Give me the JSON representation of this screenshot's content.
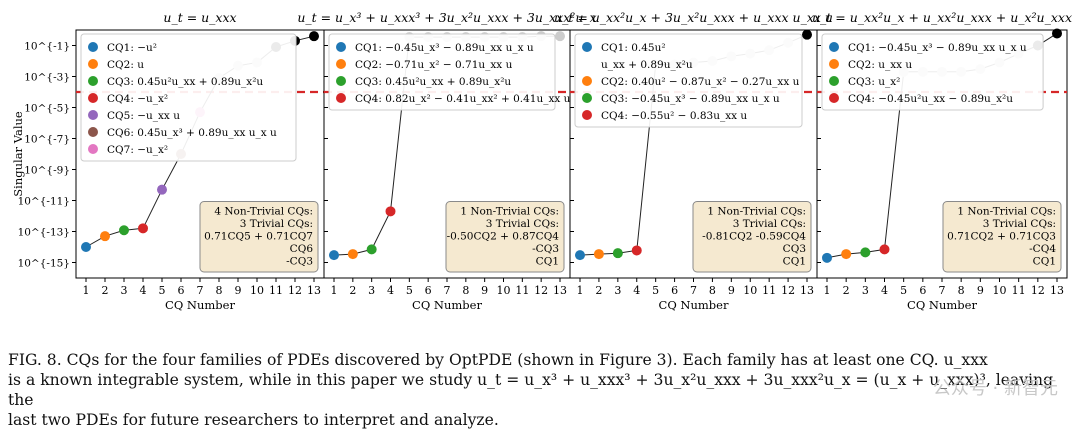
{
  "figure": {
    "caption": [
      "FIG. 8. CQs for the four families of PDEs discovered by OptPDE (shown in Figure 3). Each family has at least one CQ. u_xxx",
      "is a known integrable system, while in this paper we study u_t = u_x³ + u_xxx³ + 3u_x²u_xxx + 3u_xxx²u_x = (u_x + u_xxx)³, leaving the",
      "last two PDEs for future researchers to interpret and analyze."
    ],
    "watermark": "公众号 · 新智元"
  },
  "chart_data": [
    {
      "type": "scatter",
      "title": "u_t = u_xxx",
      "xlabel": "CQ Number",
      "ylabel": "Singular Value",
      "x": [
        1,
        2,
        3,
        4,
        5,
        6,
        7,
        8,
        9,
        10,
        11,
        12,
        13
      ],
      "y": [
        1e-14,
        5e-14,
        1.2e-13,
        1.6e-13,
        5e-11,
        1e-08,
        5e-06,
        0.0008,
        0.005,
        0.008,
        0.08,
        0.2,
        0.4
      ],
      "point_colors": [
        "#1f77b4",
        "#ff7f0e",
        "#2ca02c",
        "#d62728",
        "#9467bd",
        "#8c564b",
        "#e377c2",
        "#cccccc",
        "#cccccc",
        "#cccccc",
        "#000000",
        "#000000",
        "#000000"
      ],
      "threshold": 0.0001,
      "ylim_log10": [
        -16,
        0
      ],
      "yticks": [
        "10^{-1}",
        "10^{-3}",
        "10^{-5}",
        "10^{-7}",
        "10^{-9}",
        "10^{-11}",
        "10^{-13}",
        "10^{-15}"
      ],
      "xticks": [
        "1",
        "2",
        "3",
        "4",
        "5",
        "6",
        "7",
        "8",
        "9",
        "10",
        "11",
        "12",
        "13"
      ],
      "legend": [
        {
          "label": "CQ1: −u²",
          "color": "#1f77b4"
        },
        {
          "label": "CQ2: u",
          "color": "#ff7f0e"
        },
        {
          "label": "CQ3: 0.45u²u_xx + 0.89u_x²u",
          "color": "#2ca02c"
        },
        {
          "label": "CQ4: −u_x²",
          "color": "#d62728"
        },
        {
          "label": "CQ5: −u_xx u",
          "color": "#9467bd"
        },
        {
          "label": "CQ6: 0.45u_x³ + 0.89u_xx u_x u",
          "color": "#8c564b"
        },
        {
          "label": "CQ7: −u_x²",
          "color": "#e377c2"
        }
      ],
      "summary": [
        "4 Non-Trivial CQs:",
        "3 Trivial CQs:",
        "0.71CQ5 + 0.71CQ7",
        "CQ6",
        "-CQ3"
      ]
    },
    {
      "type": "scatter",
      "title": "u_t = u_x³ + u_xxx³ + 3u_x²u_xxx + 3u_xxx²u_x",
      "xlabel": "CQ Number",
      "ylabel": "",
      "x": [
        1,
        2,
        3,
        4,
        5,
        6,
        7,
        8,
        9,
        10,
        11,
        12,
        13
      ],
      "y": [
        3e-15,
        3.5e-15,
        7e-15,
        2e-12,
        0.35,
        0.35,
        0.35,
        0.35,
        0.35,
        0.35,
        0.35,
        0.4,
        0.4
      ],
      "point_colors": [
        "#1f77b4",
        "#ff7f0e",
        "#2ca02c",
        "#d62728",
        "#cccccc",
        "#cccccc",
        "#cccccc",
        "#cccccc",
        "#cccccc",
        "#cccccc",
        "#cccccc",
        "#cccccc",
        "#cccccc"
      ],
      "threshold": 0.0001,
      "ylim_log10": [
        -16,
        0
      ],
      "xticks": [
        "1",
        "2",
        "3",
        "4",
        "5",
        "6",
        "7",
        "8",
        "9",
        "10",
        "11",
        "12",
        "13"
      ],
      "legend": [
        {
          "label": "CQ1: −0.45u_x³ − 0.89u_xx u_x u",
          "color": "#1f77b4"
        },
        {
          "label": "CQ2: −0.71u_x² − 0.71u_xx u",
          "color": "#ff7f0e"
        },
        {
          "label": "CQ3: 0.45u²u_xx + 0.89u_x²u",
          "color": "#2ca02c"
        },
        {
          "label": "CQ4: 0.82u_x² − 0.41u_xx² + 0.41u_xx u",
          "color": "#d62728"
        }
      ],
      "summary": [
        "1 Non-Trivial CQs:",
        "3 Trivial CQs:",
        "-0.50CQ2 + 0.87CQ4",
        "-CQ3",
        "CQ1"
      ]
    },
    {
      "type": "scatter",
      "title": "u_t = u_xx²u_x + 3u_x²u_xxx + u_xxx u_xx u",
      "xlabel": "CQ Number",
      "ylabel": "",
      "x": [
        1,
        2,
        3,
        4,
        5,
        6,
        7,
        8,
        9,
        10,
        11,
        12,
        13
      ],
      "y": [
        3e-15,
        3.5e-15,
        4e-15,
        6e-15,
        0.006,
        0.006,
        0.008,
        0.01,
        0.02,
        0.03,
        0.05,
        0.15,
        0.5
      ],
      "point_colors": [
        "#1f77b4",
        "#ff7f0e",
        "#2ca02c",
        "#d62728",
        "#cccccc",
        "#cccccc",
        "#cccccc",
        "#cccccc",
        "#cccccc",
        "#cccccc",
        "#cccccc",
        "#cccccc",
        "#000000"
      ],
      "threshold": 0.0001,
      "ylim_log10": [
        -16,
        0
      ],
      "xticks": [
        "1",
        "2",
        "3",
        "4",
        "5",
        "6",
        "7",
        "8",
        "9",
        "10",
        "11",
        "12",
        "13"
      ],
      "legend": [
        {
          "label": "CQ1: 0.45u²",
          "color": "#1f77b4"
        },
        {
          "label": "u_xx + 0.89u_x²u",
          "color": ""
        },
        {
          "label": "CQ2: 0.40u² − 0.87u_x² − 0.27u_xx u",
          "color": "#ff7f0e"
        },
        {
          "label": "CQ3: −0.45u_x³ − 0.89u_xx u_x u",
          "color": "#2ca02c"
        },
        {
          "label": "CQ4: −0.55u² − 0.83u_xx u",
          "color": "#d62728"
        }
      ],
      "summary": [
        "1 Non-Trivial CQs:",
        "3 Trivial CQs:",
        "-0.81CQ2 -0.59CQ4",
        "CQ3",
        "CQ1"
      ]
    },
    {
      "type": "scatter",
      "title": "u_t = u_xx²u_x + u_xx²u_xxx + u_x²u_xxx",
      "xlabel": "CQ Number",
      "ylabel": "",
      "x": [
        1,
        2,
        3,
        4,
        5,
        6,
        7,
        8,
        9,
        10,
        11,
        12,
        13
      ],
      "y": [
        2e-15,
        3.5e-15,
        4.5e-15,
        7e-15,
        0.002,
        0.002,
        0.002,
        0.002,
        0.003,
        0.008,
        0.03,
        0.1,
        0.6
      ],
      "point_colors": [
        "#1f77b4",
        "#ff7f0e",
        "#2ca02c",
        "#d62728",
        "#cccccc",
        "#cccccc",
        "#cccccc",
        "#cccccc",
        "#cccccc",
        "#cccccc",
        "#cccccc",
        "#000000",
        "#000000"
      ],
      "threshold": 0.0001,
      "ylim_log10": [
        -16,
        0
      ],
      "xticks": [
        "1",
        "2",
        "3",
        "4",
        "5",
        "6",
        "7",
        "8",
        "9",
        "10",
        "11",
        "12",
        "13"
      ],
      "legend": [
        {
          "label": "CQ1: −0.45u_x³ − 0.89u_xx u_x u",
          "color": "#1f77b4"
        },
        {
          "label": "CQ2: u_xx u",
          "color": "#ff7f0e"
        },
        {
          "label": "CQ3: u_x²",
          "color": "#2ca02c"
        },
        {
          "label": "CQ4: −0.45u²u_xx − 0.89u_x²u",
          "color": "#d62728"
        }
      ],
      "summary": [
        "1 Non-Trivial CQs:",
        "3 Trivial CQs:",
        "0.71CQ2 + 0.71CQ3",
        "-CQ4",
        "CQ1"
      ]
    }
  ]
}
